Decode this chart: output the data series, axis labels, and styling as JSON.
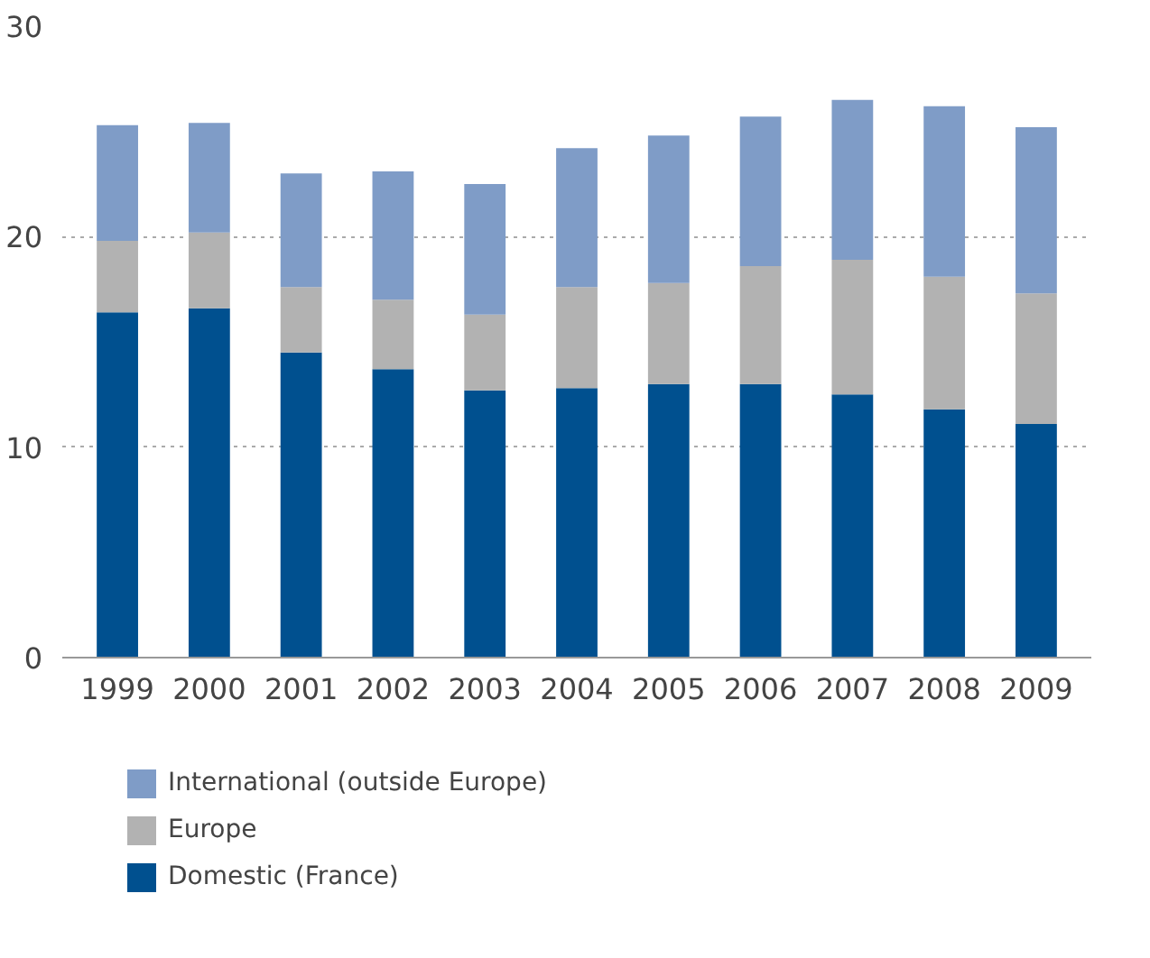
{
  "chart_data": {
    "type": "bar",
    "stacked": true,
    "categories": [
      "1999",
      "2000",
      "2001",
      "2002",
      "2003",
      "2004",
      "2005",
      "2006",
      "2007",
      "2008",
      "2009"
    ],
    "series": [
      {
        "name": "Domestic (France)",
        "color": "#00508f",
        "values": [
          16.4,
          16.6,
          14.5,
          13.7,
          12.7,
          12.8,
          13.0,
          13.0,
          12.5,
          11.8,
          11.1
        ]
      },
      {
        "name": "Europe",
        "color": "#b2b2b2",
        "values": [
          3.4,
          3.6,
          3.1,
          3.3,
          3.6,
          4.8,
          4.8,
          5.6,
          6.4,
          6.3,
          6.2
        ]
      },
      {
        "name": "International (outside Europe)",
        "color": "#7f9cc7",
        "values": [
          5.5,
          5.2,
          5.4,
          6.1,
          6.2,
          6.6,
          7.0,
          7.1,
          7.6,
          8.1,
          7.9
        ]
      }
    ],
    "ylim": [
      0,
      30
    ],
    "yticks": [
      0,
      10,
      20,
      30
    ],
    "grid": "y",
    "legend": "bottom"
  }
}
